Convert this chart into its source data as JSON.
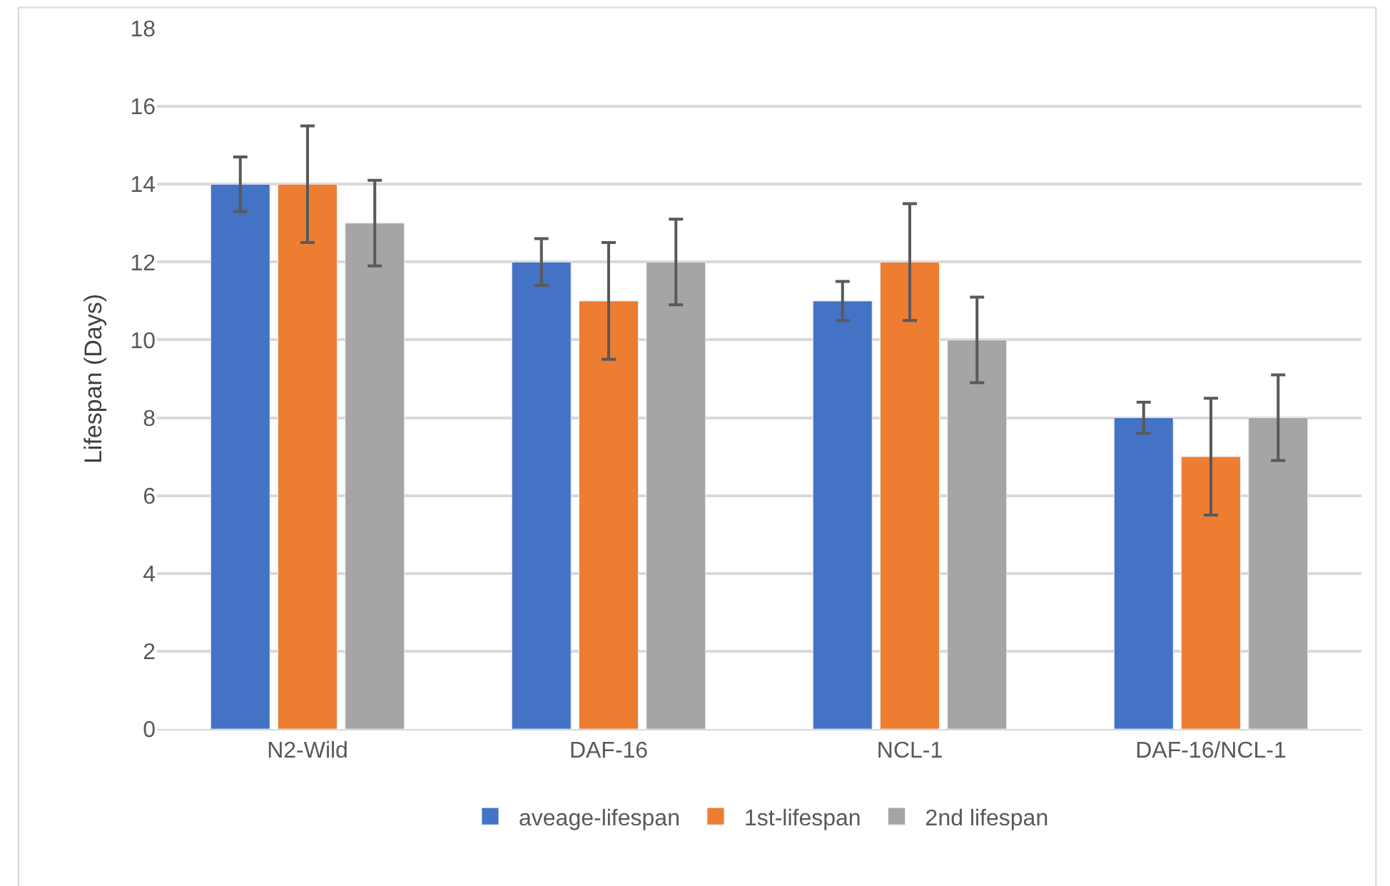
{
  "chart_data": {
    "type": "bar",
    "ylabel": "Lifespan (Days)",
    "categories": [
      "N2-Wild",
      "DAF-16",
      "NCL-1",
      "DAF-16/NCL-1"
    ],
    "series": [
      {
        "name": "aveage-lifespan",
        "color": "#4472c4",
        "values": [
          14,
          12,
          11,
          8
        ],
        "errors": [
          0.7,
          0.6,
          0.5,
          0.4
        ]
      },
      {
        "name": "1st-lifespan",
        "color": "#ed7d31",
        "values": [
          14,
          11,
          12,
          7
        ],
        "errors": [
          1.5,
          1.5,
          1.5,
          1.5
        ]
      },
      {
        "name": "2nd lifespan",
        "color": "#a5a5a5",
        "values": [
          13,
          12,
          10,
          8
        ],
        "errors": [
          1.1,
          1.1,
          1.1,
          1.1
        ]
      }
    ],
    "ylim": [
      0,
      18
    ],
    "yticks": [
      0,
      2,
      4,
      6,
      8,
      10,
      12,
      14,
      16,
      18
    ],
    "grid": "y",
    "legend": "bottom"
  }
}
